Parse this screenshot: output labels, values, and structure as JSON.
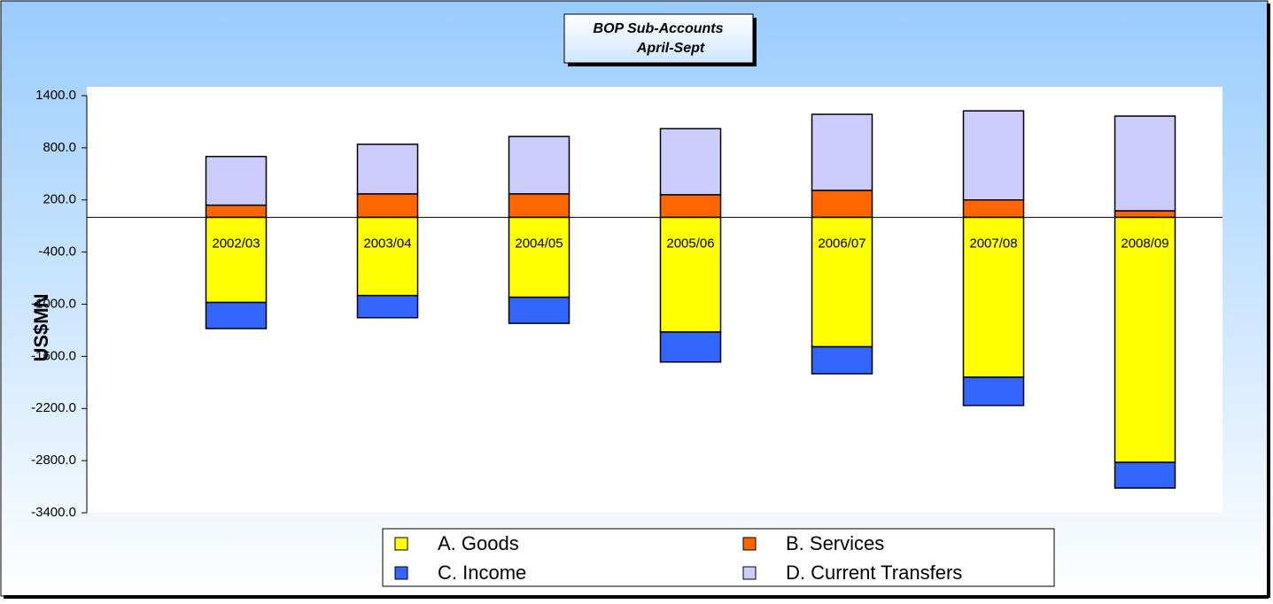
{
  "chart_data": {
    "type": "stacked_bar",
    "title": "BOP Sub-Accounts",
    "subtitle": "April-Sept",
    "y_label": "US$MN",
    "categories": [
      "2002/03",
      "2003/04",
      "2004/05",
      "2005/06",
      "2006/07",
      "2007/08",
      "2008/09"
    ],
    "series": [
      {
        "name": "A. Goods",
        "color": "#ffff00",
        "values": [
          -980,
          -900,
          -920,
          -1320,
          -1490,
          -1840,
          -2820
        ]
      },
      {
        "name": "B. Services",
        "color": "#ff6600",
        "values": [
          140,
          270,
          270,
          260,
          310,
          200,
          75
        ]
      },
      {
        "name": "C. Income",
        "color": "#3366ff",
        "values": [
          -300,
          -255,
          -300,
          -345,
          -310,
          -325,
          -295
        ]
      },
      {
        "name": "D. Current Transfers",
        "color": "#ccccff",
        "values": [
          560,
          570,
          660,
          760,
          875,
          1025,
          1090
        ]
      }
    ],
    "ylim": [
      -3400,
      1400
    ],
    "yticks": [
      {
        "value": -3400,
        "label": "-3400.0"
      },
      {
        "value": -2800,
        "label": "-2800.0"
      },
      {
        "value": -2200,
        "label": "-2200.0"
      },
      {
        "value": -1600,
        "label": "-1600.0"
      },
      {
        "value": -1000,
        "label": "-1000.0"
      },
      {
        "value": -400,
        "label": "-400.0"
      },
      {
        "value": 200,
        "label": "200.0"
      },
      {
        "value": 800,
        "label": "800.0"
      },
      {
        "value": 1400,
        "label": "1400.0"
      }
    ],
    "grid": false,
    "legend": "bottom"
  }
}
